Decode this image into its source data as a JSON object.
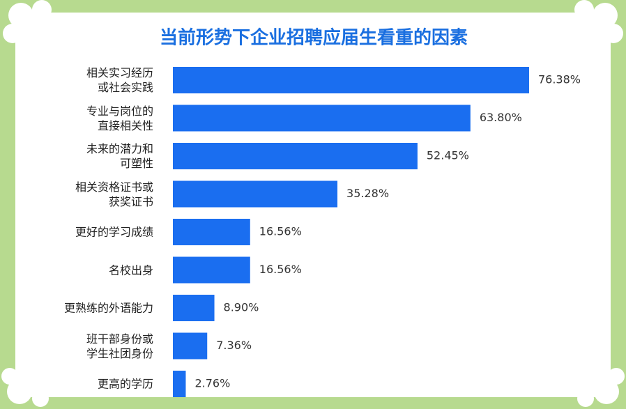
{
  "chart_data": {
    "type": "bar",
    "orientation": "horizontal",
    "title": "当前形势下企业招聘应届生看重的因素",
    "categories": [
      "相关实习经历\n或社会实践",
      "专业与岗位的\n直接相关性",
      "未来的潜力和\n可塑性",
      "相关资格证书或\n获奖证书",
      "更好的学习成绩",
      "名校出身",
      "更熟练的外语能力",
      "班干部身份或\n学生社团身份",
      "更高的学历"
    ],
    "values": [
      76.38,
      63.8,
      52.45,
      35.28,
      16.56,
      16.56,
      8.9,
      7.36,
      2.76
    ],
    "value_labels": [
      "76.38%",
      "63.80%",
      "52.45%",
      "35.28%",
      "16.56%",
      "16.56%",
      "8.90%",
      "7.36%",
      "2.76%"
    ],
    "color": "#1a6ef0"
  }
}
